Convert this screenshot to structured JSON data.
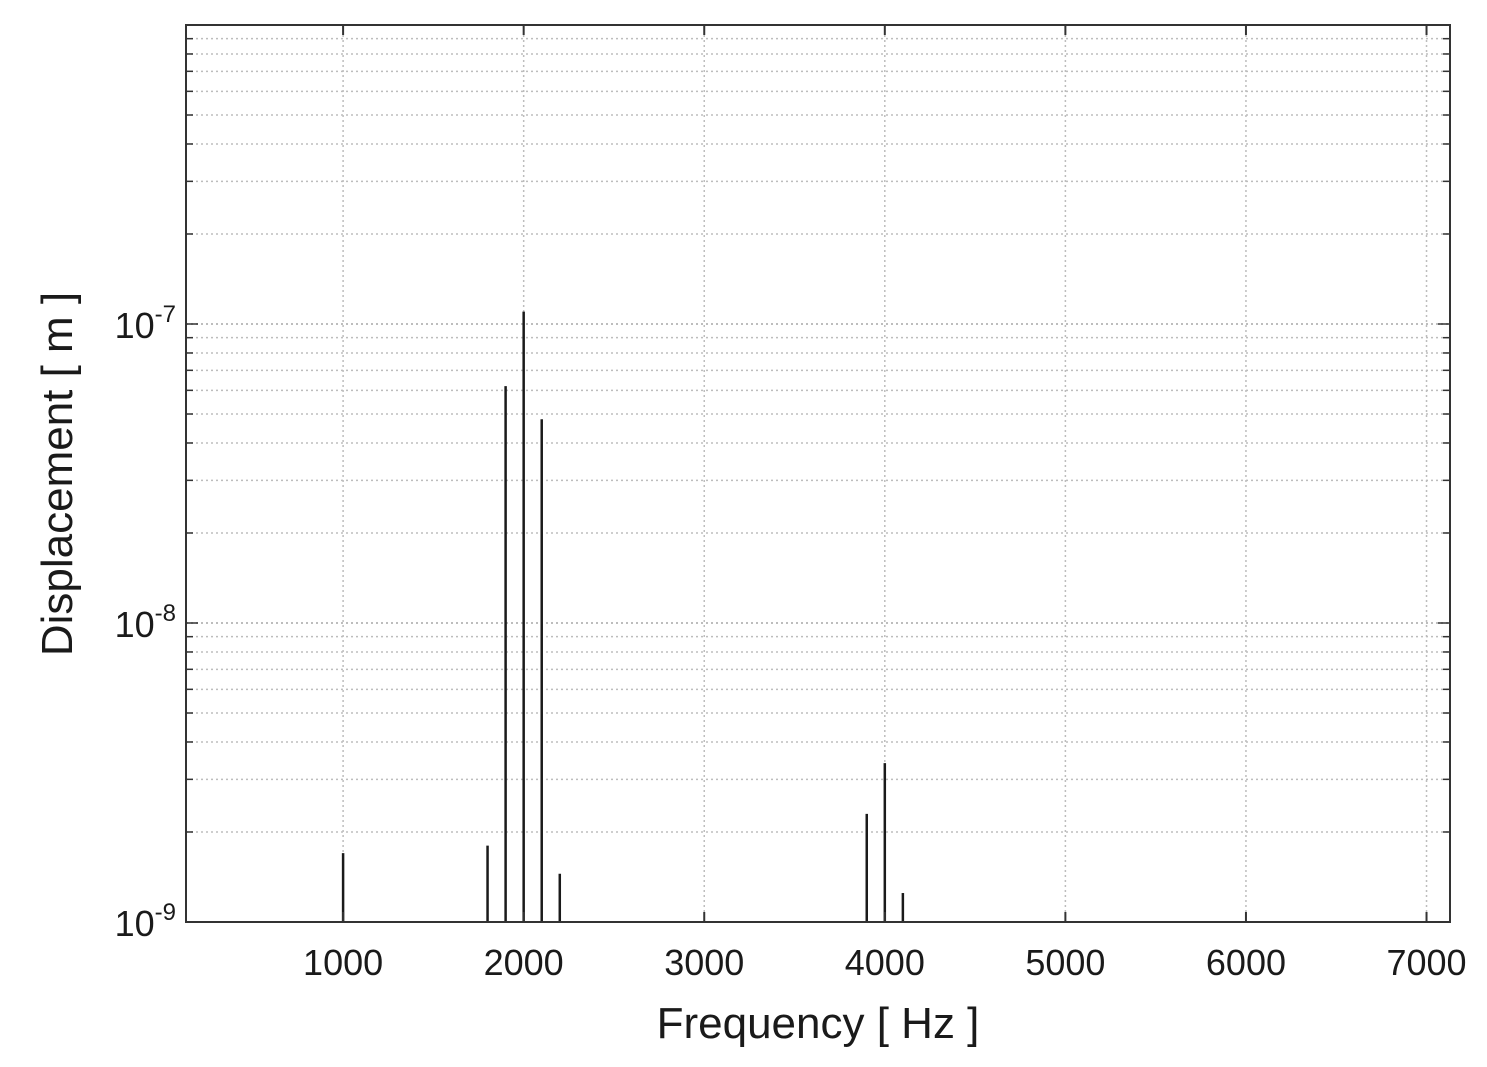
{
  "chart_data": {
    "type": "bar",
    "xlabel": "Frequency [ Hz ]",
    "ylabel": "Displacement [ m ]",
    "x_scale": "linear",
    "y_scale": "log",
    "xlim": [
      130,
      7130
    ],
    "ylim": [
      1e-09,
      1e-06
    ],
    "grid": true,
    "x_ticks": [
      1000,
      2000,
      3000,
      4000,
      5000,
      6000,
      7000
    ],
    "x_tick_labels": [
      "1000",
      "2000",
      "3000",
      "4000",
      "5000",
      "6000",
      "7000"
    ],
    "y_ticks": [
      1e-09,
      1e-08,
      1e-07
    ],
    "y_tick_labels": [
      {
        "base": "10",
        "exponent": "-9"
      },
      {
        "base": "10",
        "exponent": "-8"
      },
      {
        "base": "10",
        "exponent": "-7"
      }
    ],
    "series": [
      {
        "x": [
          1000,
          1800,
          1900,
          2000,
          2100,
          2200,
          3900,
          4000,
          4100
        ],
        "y": [
          1.7e-09,
          1.8e-09,
          6.2e-08,
          1.1e-07,
          4.8e-08,
          1.45e-09,
          2.3e-09,
          3.4e-09,
          1.25e-09
        ]
      }
    ],
    "colors": {
      "line": "#1a1a1a",
      "grid": "#bdbdbd",
      "frame": "#333333"
    }
  }
}
